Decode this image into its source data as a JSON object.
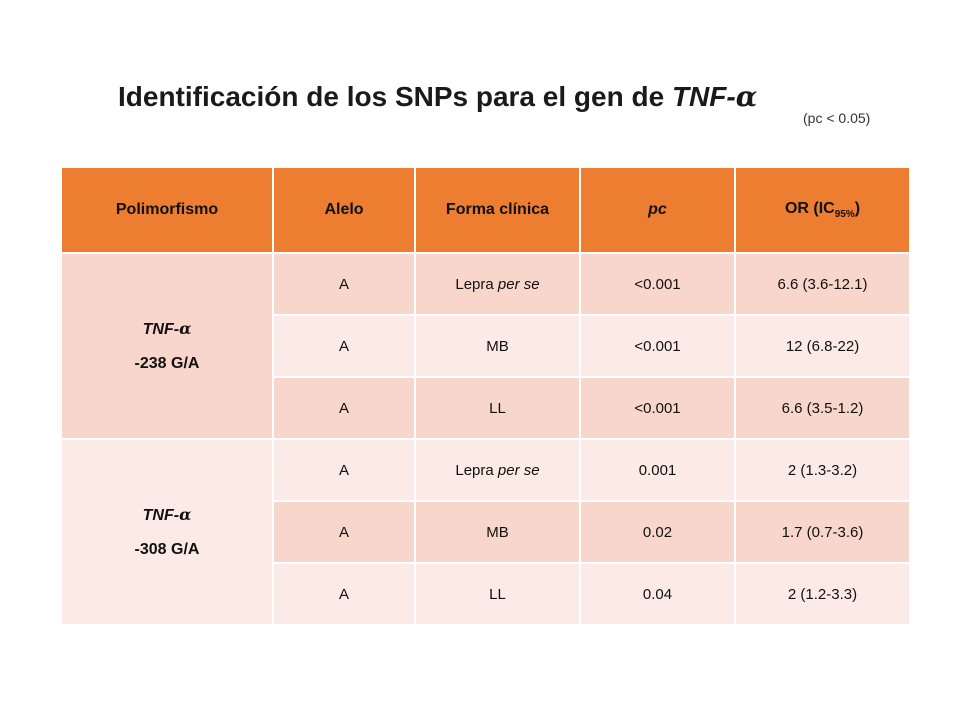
{
  "title": {
    "text": "Identificación de los SNPs para el gen de ",
    "gene": "TNF-",
    "alpha": "α"
  },
  "subtitle": "(pc < 0.05)",
  "table": {
    "headers": {
      "polimorfismo": "Polimorfismo",
      "alelo": "Alelo",
      "forma": "Forma clínica",
      "pc": "pc",
      "or_main": "OR (IC",
      "or_sub": "95%",
      "or_close": ")"
    },
    "groups": [
      {
        "gene": "TNF-",
        "alpha": "α",
        "variant": "-238 G/A",
        "rows": [
          {
            "alelo": "A",
            "forma": "Lepra ",
            "forma_em": "per se",
            "pc": "<0.001",
            "or": "6.6 (3.6-12.1)"
          },
          {
            "alelo": "A",
            "forma": "MB",
            "forma_em": "",
            "pc": "<0.001",
            "or": "12 (6.8-22)"
          },
          {
            "alelo": "A",
            "forma": "LL",
            "forma_em": "",
            "pc": "<0.001",
            "or": "6.6 (3.5-1.2)"
          }
        ]
      },
      {
        "gene": "TNF-",
        "alpha": "α",
        "variant": "-308 G/A",
        "rows": [
          {
            "alelo": "A",
            "forma": "Lepra ",
            "forma_em": "per se",
            "pc": "0.001",
            "or": "2 (1.3-3.2)"
          },
          {
            "alelo": "A",
            "forma": "MB",
            "forma_em": "",
            "pc": "0.02",
            "or": "1.7 (0.7-3.6)"
          },
          {
            "alelo": "A",
            "forma": "LL",
            "forma_em": "",
            "pc": "0.04",
            "or": "2 (1.2-3.3)"
          }
        ]
      }
    ]
  },
  "colors": {
    "header": "#ed7d31",
    "row_dark": "#f8d6cb",
    "row_light": "#fbeae5"
  }
}
